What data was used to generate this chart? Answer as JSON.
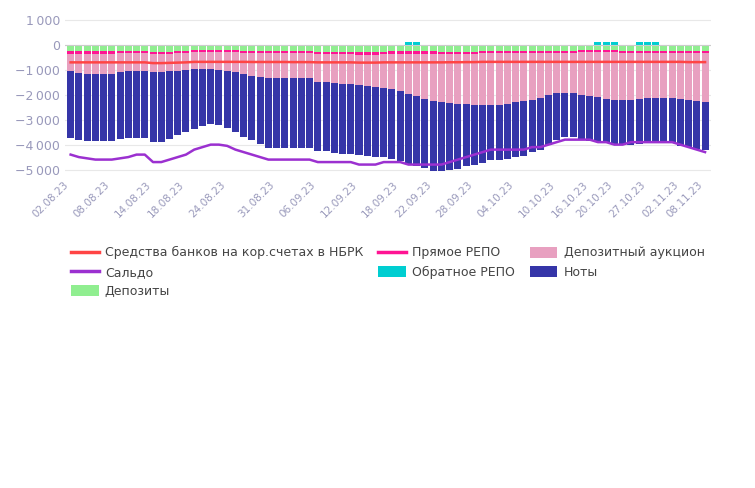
{
  "dates": [
    "02.08.23",
    "08.08.23",
    "14.08.23",
    "18.08.23",
    "24.08.23",
    "31.08.23",
    "06.09.23",
    "12.09.23",
    "18.09.23",
    "22.09.23",
    "28.09.23",
    "04.10.23",
    "10.10.23",
    "16.10.23",
    "20.10.23",
    "27.10.23",
    "02.11.23",
    "08.11.23"
  ],
  "tick_positions": [
    0,
    5,
    10,
    14,
    19,
    25,
    30,
    35,
    40,
    44,
    49,
    54,
    59,
    63,
    66,
    70,
    74,
    77
  ],
  "n_bars": 78,
  "deposits": [
    250,
    250,
    250,
    250,
    250,
    250,
    250,
    250,
    250,
    250,
    300,
    300,
    280,
    250,
    250,
    200,
    200,
    200,
    220,
    220,
    220,
    250,
    250,
    250,
    250,
    250,
    250,
    260,
    260,
    260,
    270,
    270,
    270,
    270,
    270,
    280,
    270,
    270,
    265,
    260,
    260,
    260,
    255,
    250,
    250,
    270,
    270,
    270,
    270,
    270,
    240,
    240,
    240,
    240,
    230,
    230,
    230,
    230,
    230,
    230,
    230,
    230,
    220,
    220,
    220,
    220,
    220,
    230,
    230,
    230,
    240,
    240,
    240,
    230,
    230,
    230,
    230,
    230
  ],
  "direct_repo": [
    100,
    120,
    120,
    120,
    100,
    100,
    80,
    80,
    80,
    80,
    80,
    80,
    80,
    80,
    80,
    80,
    80,
    80,
    80,
    80,
    80,
    80,
    80,
    80,
    80,
    80,
    80,
    80,
    80,
    80,
    100,
    100,
    100,
    100,
    100,
    120,
    120,
    120,
    100,
    100,
    100,
    100,
    100,
    100,
    100,
    100,
    100,
    100,
    100,
    100,
    80,
    80,
    80,
    80,
    80,
    80,
    80,
    80,
    80,
    80,
    80,
    80,
    80,
    80,
    80,
    80,
    80,
    80,
    80,
    80,
    80,
    80,
    80,
    80,
    80,
    80,
    80,
    80
  ],
  "deposit_auction": [
    700,
    750,
    780,
    800,
    800,
    800,
    750,
    720,
    700,
    700,
    700,
    700,
    700,
    700,
    680,
    680,
    680,
    700,
    720,
    750,
    800,
    850,
    900,
    950,
    1000,
    1000,
    1000,
    1000,
    1000,
    1000,
    1100,
    1100,
    1150,
    1200,
    1200,
    1200,
    1250,
    1300,
    1350,
    1400,
    1500,
    1600,
    1700,
    1800,
    1900,
    1900,
    1950,
    2000,
    2000,
    2050,
    2100,
    2100,
    2100,
    2050,
    2000,
    1950,
    1900,
    1800,
    1700,
    1600,
    1600,
    1600,
    1700,
    1750,
    1800,
    1850,
    1900,
    1900,
    1900,
    1850,
    1800,
    1800,
    1800,
    1800,
    1850,
    1900,
    1950,
    2000
  ],
  "notes_bills": [
    2700,
    2700,
    2700,
    2700,
    2700,
    2700,
    2700,
    2700,
    2700,
    2700,
    2800,
    2800,
    2700,
    2600,
    2500,
    2400,
    2300,
    2200,
    2200,
    2300,
    2400,
    2500,
    2600,
    2700,
    2800,
    2800,
    2800,
    2800,
    2800,
    2800,
    2800,
    2800,
    2800,
    2800,
    2800,
    2800,
    2800,
    2800,
    2800,
    2800,
    2800,
    2800,
    2800,
    2800,
    2800,
    2800,
    2700,
    2600,
    2500,
    2400,
    2300,
    2200,
    2200,
    2200,
    2200,
    2200,
    2100,
    2100,
    2000,
    1900,
    1800,
    1800,
    1800,
    1800,
    1800,
    1800,
    1800,
    1800,
    1800,
    1800,
    1800,
    1800,
    1800,
    1800,
    1900,
    1900,
    1900,
    1900
  ],
  "reverse_repo": [
    0,
    0,
    0,
    0,
    0,
    0,
    0,
    0,
    0,
    0,
    0,
    0,
    0,
    0,
    0,
    0,
    0,
    0,
    0,
    0,
    0,
    0,
    0,
    0,
    0,
    0,
    0,
    0,
    0,
    0,
    0,
    0,
    0,
    0,
    0,
    0,
    0,
    0,
    0,
    0,
    0,
    100,
    100,
    0,
    0,
    0,
    0,
    0,
    0,
    0,
    0,
    0,
    0,
    0,
    0,
    0,
    0,
    0,
    0,
    0,
    0,
    0,
    0,
    0,
    100,
    100,
    100,
    0,
    0,
    100,
    100,
    100,
    0,
    0,
    0,
    0,
    0,
    0
  ],
  "corr_accounts": [
    700,
    700,
    700,
    700,
    700,
    700,
    700,
    700,
    700,
    700,
    730,
    730,
    720,
    710,
    700,
    680,
    680,
    680,
    680,
    680,
    680,
    680,
    685,
    685,
    685,
    685,
    685,
    690,
    690,
    690,
    700,
    700,
    700,
    700,
    700,
    710,
    710,
    710,
    700,
    700,
    700,
    700,
    700,
    700,
    700,
    700,
    695,
    695,
    690,
    690,
    680,
    680,
    680,
    680,
    680,
    680,
    680,
    680,
    680,
    680,
    680,
    680,
    680,
    680,
    680,
    680,
    680,
    680,
    680,
    680,
    680,
    680,
    680,
    680,
    680,
    690,
    690,
    690
  ],
  "saldo": [
    4400,
    4500,
    4550,
    4600,
    4600,
    4600,
    4550,
    4500,
    4400,
    4400,
    4700,
    4700,
    4600,
    4500,
    4400,
    4200,
    4100,
    4000,
    4000,
    4050,
    4200,
    4300,
    4400,
    4500,
    4600,
    4600,
    4600,
    4600,
    4600,
    4600,
    4700,
    4700,
    4700,
    4700,
    4700,
    4800,
    4800,
    4800,
    4700,
    4700,
    4700,
    4800,
    4800,
    4800,
    4800,
    4800,
    4700,
    4600,
    4500,
    4400,
    4300,
    4200,
    4200,
    4200,
    4200,
    4200,
    4100,
    4100,
    4000,
    3900,
    3800,
    3800,
    3800,
    3800,
    3900,
    3900,
    4000,
    4000,
    3900,
    3900,
    3900,
    3900,
    3900,
    3900,
    4000,
    4100,
    4200,
    4300
  ],
  "colors": {
    "deposits": "#90EE90",
    "deposit_auction": "#E8A0C0",
    "direct_repo": "#FF1493",
    "notes_bills": "#3535A8",
    "reverse_repo": "#00CED1",
    "corr_accounts": "#FF4444",
    "saldo": "#9B30D0"
  },
  "legend_labels": {
    "corr_accounts": "Средства банков на кор.счетах в НБРК",
    "saldo": "Сальдо",
    "deposits": "Депозиты",
    "direct_repo": "Прямое РЕПО",
    "reverse_repo": "Обратное РЕПО",
    "deposit_auction": "Депозитный аукцион",
    "notes_bills": "Ноты"
  },
  "ylim": [
    -5200,
    1200
  ],
  "yticks": [
    -5000,
    -4000,
    -3000,
    -2000,
    -1000,
    0,
    1000
  ],
  "background_color": "#ffffff",
  "grid_color": "#e8e8e8"
}
